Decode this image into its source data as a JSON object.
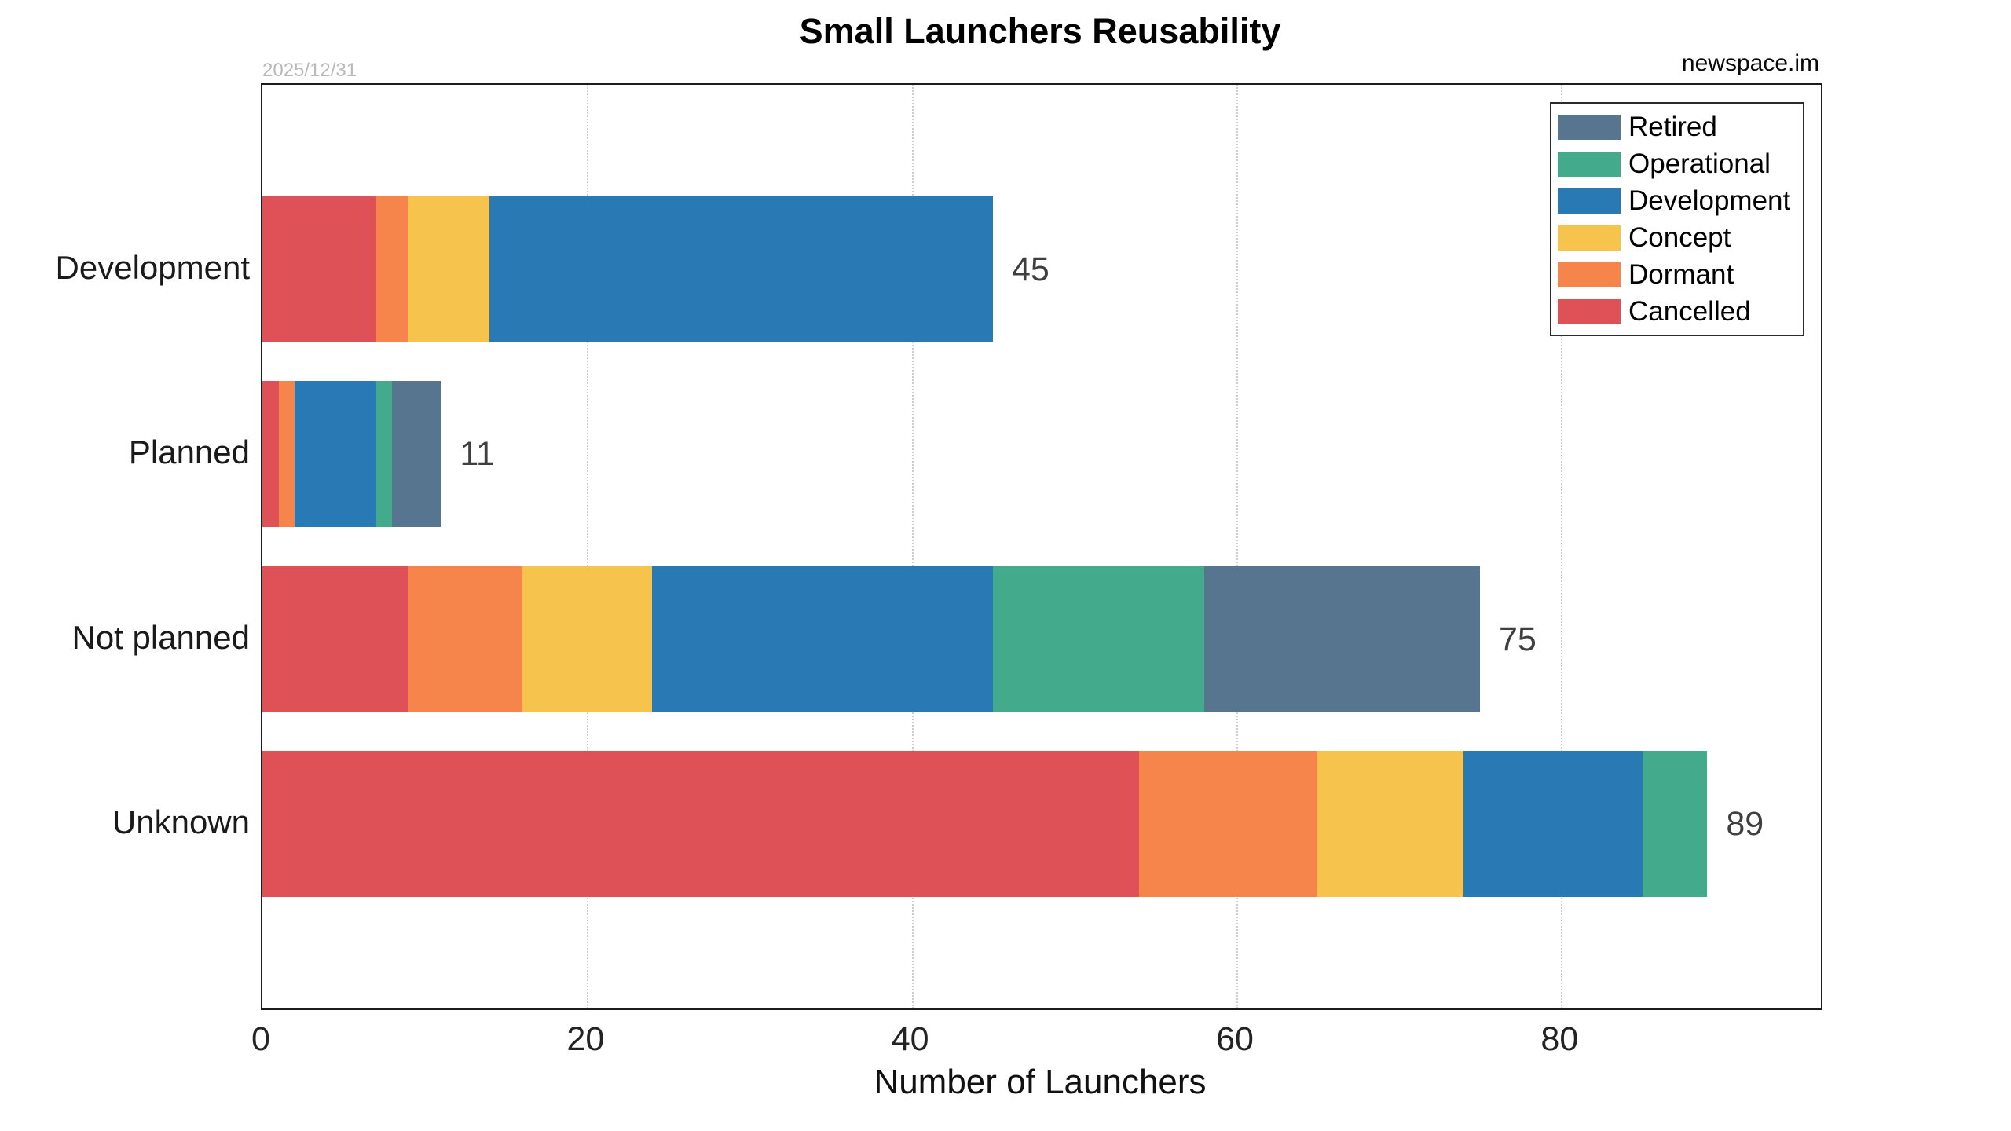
{
  "header": {
    "date_watermark": "2025/12/31",
    "brand": "newspace.im"
  },
  "chart_data": {
    "type": "bar",
    "orientation": "horizontal",
    "stacked": true,
    "title": "Small Launchers Reusability",
    "xlabel": "Number of Launchers",
    "ylabel": "",
    "categories": [
      "Development",
      "Planned",
      "Not planned",
      "Unknown"
    ],
    "totals": [
      45,
      11,
      75,
      89
    ],
    "series": [
      {
        "name": "Cancelled",
        "color": "#DE5156",
        "values": [
          7,
          1,
          9,
          54
        ]
      },
      {
        "name": "Dormant",
        "color": "#F5854A",
        "values": [
          2,
          1,
          7,
          11
        ]
      },
      {
        "name": "Concept",
        "color": "#F6C34C",
        "values": [
          5,
          0,
          8,
          9
        ]
      },
      {
        "name": "Development",
        "color": "#2879B4",
        "values": [
          31,
          5,
          21,
          11
        ]
      },
      {
        "name": "Operational",
        "color": "#43AB8C",
        "values": [
          0,
          1,
          13,
          4
        ]
      },
      {
        "name": "Retired",
        "color": "#57758F",
        "values": [
          0,
          3,
          17,
          0
        ]
      }
    ],
    "legend": {
      "position": "upper-right",
      "entries": [
        "Retired",
        "Operational",
        "Development",
        "Concept",
        "Dormant",
        "Cancelled"
      ]
    },
    "xticks": [
      0,
      20,
      40,
      60,
      80
    ],
    "xlim": [
      0,
      96
    ],
    "grid": "vertical-dotted"
  }
}
